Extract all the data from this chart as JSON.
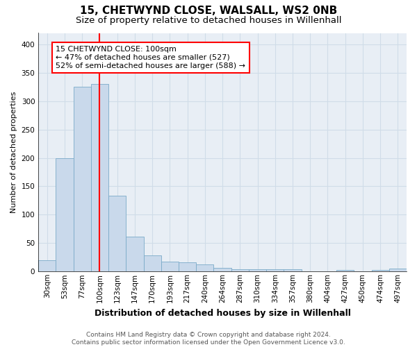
{
  "title1": "15, CHETWYND CLOSE, WALSALL, WS2 0NB",
  "title2": "Size of property relative to detached houses in Willenhall",
  "xlabel": "Distribution of detached houses by size in Willenhall",
  "ylabel": "Number of detached properties",
  "categories": [
    "30sqm",
    "53sqm",
    "77sqm",
    "100sqm",
    "123sqm",
    "147sqm",
    "170sqm",
    "193sqm",
    "217sqm",
    "240sqm",
    "264sqm",
    "287sqm",
    "310sqm",
    "334sqm",
    "357sqm",
    "380sqm",
    "404sqm",
    "427sqm",
    "450sqm",
    "474sqm",
    "497sqm"
  ],
  "values": [
    20,
    200,
    325,
    330,
    133,
    62,
    28,
    17,
    16,
    13,
    7,
    4,
    4,
    4,
    4,
    0,
    0,
    3,
    0,
    3,
    5
  ],
  "bar_color": "#c9d9eb",
  "bar_edge_color": "#7aaac8",
  "vline_x_index": 3,
  "vline_color": "red",
  "annotation_text": "15 CHETWYND CLOSE: 100sqm\n← 47% of detached houses are smaller (527)\n52% of semi-detached houses are larger (588) →",
  "annotation_box_color": "white",
  "annotation_box_edge_color": "red",
  "ylim": [
    0,
    420
  ],
  "yticks": [
    0,
    50,
    100,
    150,
    200,
    250,
    300,
    350,
    400
  ],
  "grid_color": "#d0dce8",
  "background_color": "#e8eef5",
  "footnote": "Contains HM Land Registry data © Crown copyright and database right 2024.\nContains public sector information licensed under the Open Government Licence v3.0.",
  "title1_fontsize": 11,
  "title2_fontsize": 9.5,
  "xlabel_fontsize": 9,
  "ylabel_fontsize": 8,
  "tick_fontsize": 7.5,
  "annotation_fontsize": 8,
  "footnote_fontsize": 6.5
}
